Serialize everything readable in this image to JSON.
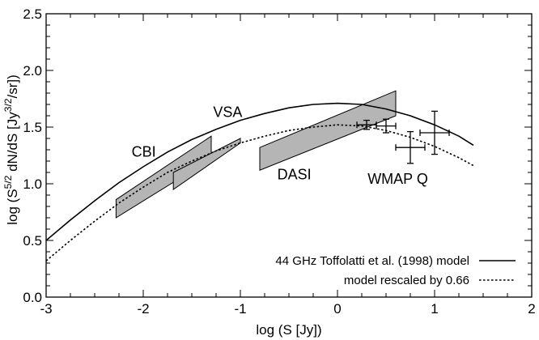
{
  "chart_data": {
    "type": "line",
    "xlabel": "log (S [Jy])",
    "ylabel": "log (S^5/2 dN/dS [Jy^3/2/sr])",
    "ylabel_parts": {
      "a": "log (S",
      "sup1": "5/2",
      "b": " dN/dS [Jy",
      "sup2": "3/2",
      "c": "/sr])"
    },
    "xlim": [
      -3,
      2
    ],
    "ylim": [
      0,
      2.5
    ],
    "xticks": [
      -3,
      -2,
      -1,
      0,
      1,
      2
    ],
    "yticks": [
      0.0,
      0.5,
      1.0,
      1.5,
      2.0,
      2.5
    ],
    "xtick_labels": [
      "-3",
      "-2",
      "-1",
      "0",
      "1",
      "2"
    ],
    "ytick_labels": [
      "0.0",
      "0.5",
      "1.0",
      "1.5",
      "2.0",
      "2.5"
    ],
    "grid": false,
    "legend_position": "bottom-right",
    "series": [
      {
        "name": "44 GHz Toffolatti et al. (1998) model",
        "style": "solid",
        "color": "#000000",
        "x": [
          -3.0,
          -2.75,
          -2.5,
          -2.25,
          -2.0,
          -1.75,
          -1.5,
          -1.25,
          -1.0,
          -0.75,
          -0.5,
          -0.25,
          0.0,
          0.25,
          0.5,
          0.75,
          1.0,
          1.25,
          1.4
        ],
        "y": [
          0.5,
          0.68,
          0.85,
          1.01,
          1.15,
          1.28,
          1.39,
          1.48,
          1.56,
          1.62,
          1.67,
          1.7,
          1.71,
          1.7,
          1.66,
          1.6,
          1.52,
          1.42,
          1.34
        ]
      },
      {
        "name": "model rescaled by 0.66",
        "style": "dotted",
        "color": "#000000",
        "x": [
          -3.0,
          -2.75,
          -2.5,
          -2.25,
          -2.0,
          -1.75,
          -1.5,
          -1.25,
          -1.0,
          -0.75,
          -0.5,
          -0.25,
          0.0,
          0.25,
          0.5,
          0.75,
          1.0,
          1.25,
          1.4
        ],
        "y": [
          0.32,
          0.5,
          0.67,
          0.83,
          0.97,
          1.1,
          1.2,
          1.29,
          1.36,
          1.42,
          1.47,
          1.5,
          1.52,
          1.51,
          1.47,
          1.41,
          1.33,
          1.23,
          1.16
        ]
      }
    ],
    "regions": [
      {
        "name": "CBI",
        "fill": "#b5b5b5",
        "polygon": [
          [
            -2.28,
            0.86
          ],
          [
            -1.3,
            1.42
          ],
          [
            -1.3,
            1.22
          ],
          [
            -2.28,
            0.7
          ]
        ]
      },
      {
        "name": "VSA",
        "fill": "#b5b5b5",
        "polygon": [
          [
            -1.69,
            1.1
          ],
          [
            -1.0,
            1.4
          ],
          [
            -1.0,
            1.36
          ],
          [
            -1.69,
            0.95
          ]
        ]
      },
      {
        "name": "DASI",
        "fill": "#b5b5b5",
        "polygon": [
          [
            -0.8,
            1.32
          ],
          [
            0.6,
            1.82
          ],
          [
            0.6,
            1.6
          ],
          [
            -0.8,
            1.12
          ]
        ]
      }
    ],
    "error_points": [
      {
        "x": 0.3,
        "y": 1.52,
        "xerr": 0.1,
        "yerr": 0.04
      },
      {
        "x": 0.5,
        "y": 1.51,
        "xerr": 0.1,
        "yerr": 0.06
      },
      {
        "x": 0.75,
        "y": 1.32,
        "xerr": 0.15,
        "yerr": 0.14
      },
      {
        "x": 1.0,
        "y": 1.45,
        "xerr": 0.15,
        "yerr": 0.19
      }
    ],
    "annotations": [
      {
        "text": "CBI",
        "x": -2.12,
        "y": 1.24
      },
      {
        "text": "VSA",
        "x": -1.28,
        "y": 1.59
      },
      {
        "text": "DASI",
        "x": -0.62,
        "y": 1.04
      },
      {
        "text": "WMAP Q",
        "x": 0.31,
        "y": 1.0
      }
    ],
    "colors": {
      "region_fill": "#b5b5b5",
      "axis": "#000000"
    }
  }
}
